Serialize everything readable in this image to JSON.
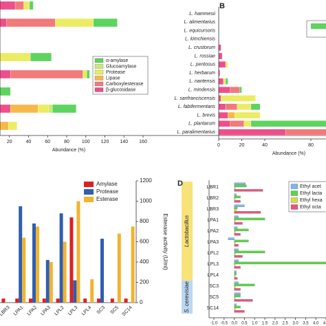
{
  "chart_data": [
    {
      "type": "hstack",
      "x_label": "Abundance (%)",
      "categories": [
        null,
        null,
        null,
        null,
        null,
        null,
        null,
        null
      ],
      "xlim": [
        0,
        160
      ],
      "xticks": [
        20,
        40,
        60,
        80,
        100,
        120,
        140,
        160
      ],
      "series": [
        {
          "name": "α-amylase",
          "color": "#5fd35f",
          "values": [
            4,
            25,
            0,
            22,
            3,
            21,
            25,
            0
          ]
        },
        {
          "name": "Glucoamylase",
          "color": "#c8ec6e",
          "values": [
            0,
            0,
            0,
            0,
            0,
            0,
            4,
            0
          ]
        },
        {
          "name": "Protease",
          "color": "#ecec64",
          "values": [
            6,
            40,
            0,
            42,
            4,
            0,
            11,
            9
          ]
        },
        {
          "name": "Lipase",
          "color": "#f7b84b",
          "values": [
            0,
            0,
            0,
            0,
            0,
            0,
            29,
            19
          ]
        },
        {
          "name": "Carboxylesterase",
          "color": "#f27a7a",
          "values": [
            9,
            51,
            0,
            0,
            76,
            0,
            0,
            0
          ]
        },
        {
          "name": "β-glucosidase",
          "color": "#ee4f8b",
          "values": [
            26,
            17,
            0,
            0,
            21,
            0,
            21,
            0
          ]
        }
      ]
    },
    {
      "type": "hstack",
      "panel_label": "B",
      "x_label": "Abundance (%)",
      "categories": [
        "L. hammesii",
        "L. alimentarius",
        "L. equicursoris",
        "L. kimchiensis",
        "L. crustorum",
        "L. rossiae",
        "L. pentosus",
        "L. herbarum",
        "L. nantensis",
        "L. mindensis",
        "L. sanfranciscensis",
        "L. fabifermentans",
        "L. brevis",
        "L. plantarum",
        "L. paralimentarius"
      ],
      "xlim": [
        0,
        100
      ],
      "xticks": [
        0,
        20,
        40,
        80
      ],
      "series": [
        {
          "color": "#5fd35f",
          "values": [
            0,
            0,
            0,
            0,
            0,
            0,
            0,
            0,
            2,
            2,
            0,
            8,
            0,
            68,
            0
          ]
        },
        {
          "color": "#c8ec6e",
          "values": [
            0,
            0,
            0,
            0,
            0,
            0,
            0,
            0,
            0,
            0,
            0,
            0,
            0,
            0,
            0
          ]
        },
        {
          "color": "#ecec64",
          "values": [
            0,
            0,
            0,
            0,
            0,
            0,
            2,
            0,
            2,
            0,
            30,
            12,
            22,
            6,
            0
          ]
        },
        {
          "color": "#f7b84b",
          "values": [
            0,
            0,
            0,
            0,
            0,
            0,
            0,
            0,
            0,
            0,
            0,
            0,
            6,
            0,
            0
          ]
        },
        {
          "color": "#f27a7a",
          "values": [
            0,
            0,
            0,
            0,
            0,
            0,
            0,
            0,
            0,
            8,
            0,
            10,
            0,
            12,
            42
          ]
        },
        {
          "color": "#ee4f8b",
          "values": [
            0,
            0,
            0,
            0,
            2,
            3,
            6,
            1,
            4,
            10,
            2,
            6,
            8,
            10,
            58
          ]
        }
      ]
    },
    {
      "type": "vgroup",
      "y2_label": "Esterase activity (U/ml)",
      "categories": [
        "LBR3",
        "LPA1",
        "LPA2",
        "LPA3",
        "LPL2",
        "LPL3",
        "LPL4",
        "SC3",
        "SC5",
        "SC14"
      ],
      "y2lim": [
        0,
        1200
      ],
      "y2ticks": [
        0,
        200,
        400,
        600,
        800,
        1000,
        1200
      ],
      "series": [
        {
          "name": "Amylase",
          "color": "#e02020",
          "axis": "y2",
          "values": [
            40,
            40,
            40,
            40,
            40,
            840,
            40,
            40,
            40,
            40
          ]
        },
        {
          "name": "Protease",
          "color": "#2f5fb0",
          "axis": "y2",
          "values": [
            0,
            950,
            780,
            420,
            880,
            220,
            0,
            630,
            0,
            0
          ]
        },
        {
          "name": "Esterase",
          "color": "#f2b32e",
          "axis": "y2",
          "values": [
            0,
            640,
            750,
            400,
            600,
            1000,
            230,
            0,
            680,
            750
          ]
        }
      ]
    },
    {
      "type": "hgroup",
      "panel_label": "D",
      "categories": [
        "LBR1",
        "LBR2",
        "LBR3",
        "LPA1",
        "LPA2",
        "LPA3",
        "LPL2",
        "LPL3",
        "LPL4",
        "SC3",
        "SC5",
        "SC14"
      ],
      "groups": [
        {
          "label": "Lactobacillus",
          "members": [
            "LBR1",
            "LBR2",
            "LBR3",
            "LPA1",
            "LPA2",
            "LPA3",
            "LPL2",
            "LPL3",
            "LPL4"
          ]
        },
        {
          "label": "S. cerevisiae",
          "members": [
            "SC3",
            "SC5",
            "SC14"
          ]
        }
      ],
      "xlim": [
        -1.0,
        4.5
      ],
      "xticks": [
        {
          "value": -1,
          "label": "-1.0"
        },
        -0.5,
        {
          "value": 0,
          "label": "0.0"
        },
        0.5,
        {
          "value": 1,
          "label": "1.0"
        },
        1.5,
        {
          "value": 2,
          "label": "2.0"
        },
        2.5,
        {
          "value": 3,
          "label": "3.0"
        },
        3.5,
        {
          "value": 4,
          "label": "4.0"
        },
        4.5
      ],
      "series": [
        {
          "name": "Ethyl acet",
          "color": "#7eb6ea",
          "values": [
            0.55,
            0.1,
            0.5,
            0.2,
            0.15,
            -0.3,
            0.2,
            0.2,
            0.1,
            0.2,
            0.3,
            0.1
          ]
        },
        {
          "name": "Ethyl lacta",
          "color": "#5ed24a",
          "values": [
            0.6,
            0.3,
            0.15,
            1.5,
            0.7,
            0.7,
            1.5,
            4.6,
            0.1,
            1.0,
            0.3,
            0.3
          ]
        },
        {
          "name": "Ethyl hexa",
          "color": "#d7d94a",
          "values": [
            0.05,
            0.05,
            0.1,
            0.05,
            0.05,
            0.05,
            0.05,
            0.05,
            0.05,
            0.05,
            0.05,
            0.05
          ]
        },
        {
          "name": "Ethyl octa",
          "color": "#e8557a",
          "values": [
            1.4,
            0.3,
            1.3,
            0.4,
            0.3,
            0.2,
            0.4,
            0.3,
            0.15,
            0.3,
            0.9,
            0.5
          ]
        }
      ]
    }
  ]
}
